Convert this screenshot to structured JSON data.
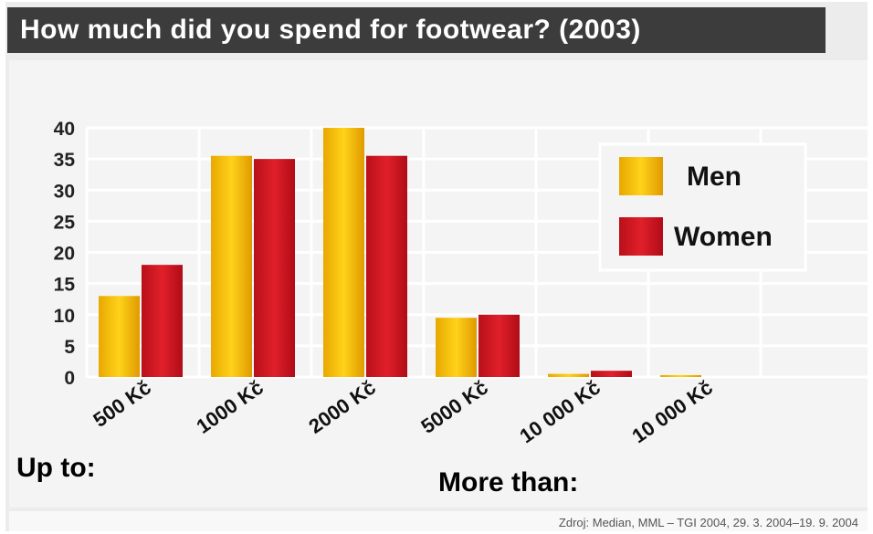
{
  "chart_data": {
    "type": "bar",
    "title": "How much did you spend for footwear? (2003)",
    "categories": [
      "500 Kč",
      "1000 Kč",
      "2000 Kč",
      "5000 Kč",
      "10 000 Kč",
      "10 000 Kč"
    ],
    "series": [
      {
        "name": "Men",
        "color": "#f2b600",
        "values": [
          13,
          35.5,
          40,
          9.5,
          0.5,
          0.3
        ]
      },
      {
        "name": "Women",
        "color": "#cc1520",
        "values": [
          18,
          35,
          35.5,
          10,
          1,
          0
        ]
      }
    ],
    "yticks": [
      "0",
      "5",
      "10",
      "15",
      "20",
      "25",
      "30",
      "35",
      "40"
    ],
    "ylim": [
      0,
      40
    ],
    "legend": "top-right",
    "grid": true,
    "annotations": {
      "up_to": "Up to:",
      "more_than": "More than:"
    },
    "source": "Zdroj: Median, MML – TGI 2004, 29. 3. 2004–19. 9. 2004"
  }
}
